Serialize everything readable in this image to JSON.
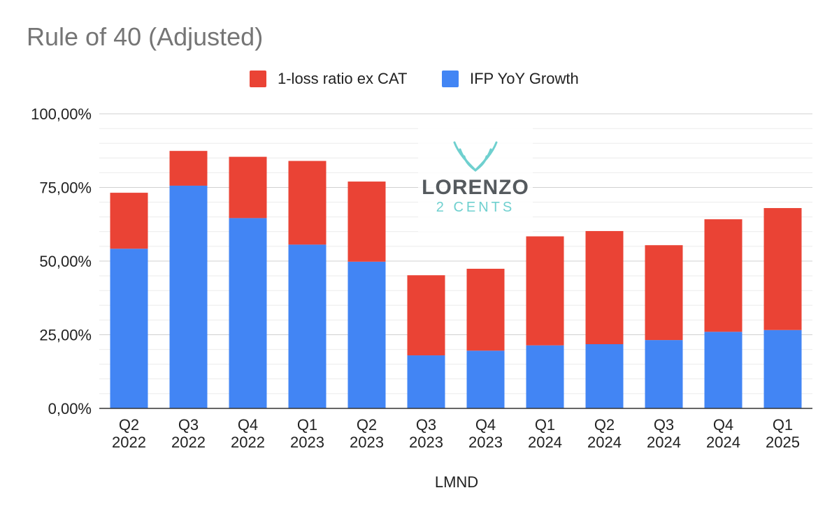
{
  "chart_data": {
    "type": "bar",
    "stacked": true,
    "title": "Rule of 40 (Adjusted)",
    "xlabel": "LMND",
    "ylabel": "",
    "ylim": [
      0,
      100
    ],
    "yticks": [
      "0,00%",
      "25,00%",
      "50,00%",
      "75,00%",
      "100,00%"
    ],
    "grid": true,
    "legend_position": "top",
    "categories": [
      [
        "Q2",
        "2022"
      ],
      [
        "Q3",
        "2022"
      ],
      [
        "Q4",
        "2022"
      ],
      [
        "Q1",
        "2023"
      ],
      [
        "Q2",
        "2023"
      ],
      [
        "Q3",
        "2023"
      ],
      [
        "Q4",
        "2023"
      ],
      [
        "Q1",
        "2024"
      ],
      [
        "Q2",
        "2024"
      ],
      [
        "Q3",
        "2024"
      ],
      [
        "Q4",
        "2024"
      ],
      [
        "Q1",
        "2025"
      ]
    ],
    "series": [
      {
        "name": "IFP YoY Growth",
        "color": "#4285f4",
        "values": [
          54.2,
          75.6,
          64.6,
          55.6,
          49.8,
          18.0,
          19.6,
          21.4,
          21.8,
          23.2,
          26.0,
          26.6
        ]
      },
      {
        "name": "1-loss ratio ex CAT",
        "color": "#ea4335",
        "values": [
          19.0,
          11.8,
          20.8,
          28.4,
          27.2,
          27.2,
          27.8,
          37.0,
          38.4,
          32.2,
          38.2,
          41.4
        ]
      }
    ],
    "legend_order": [
      1,
      0
    ]
  },
  "watermark": {
    "name": "LORENZO",
    "sub": "2 CENTS"
  }
}
